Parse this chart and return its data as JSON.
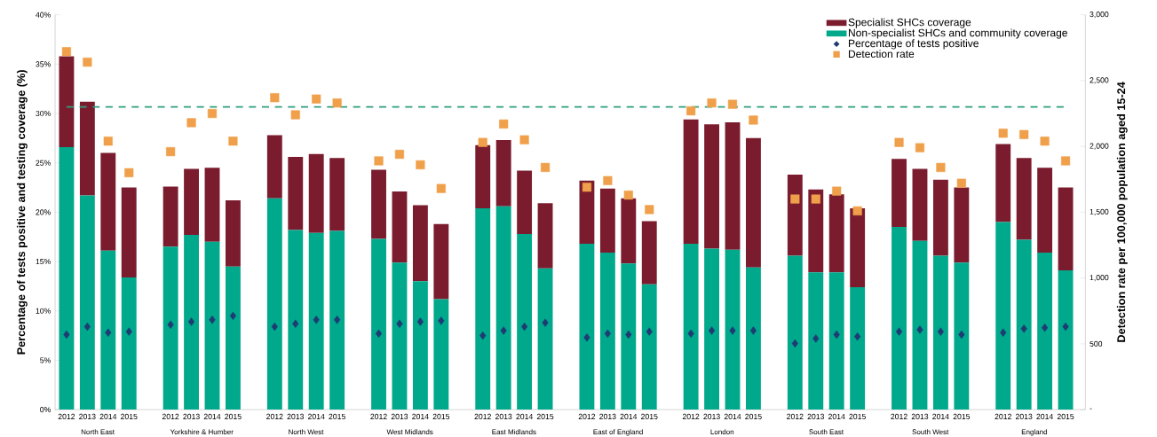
{
  "chart_data": {
    "type": "bar",
    "stacked": true,
    "categories": [
      "2012",
      "2013",
      "2014",
      "2015",
      null,
      "2012",
      "2013",
      "2014",
      "2015",
      null,
      "2012",
      "2013",
      "2014",
      "2015",
      null,
      "2012",
      "2013",
      "2014",
      "2015",
      null,
      "2012",
      "2013",
      "2014",
      "2015",
      null,
      "2012",
      "2013",
      "2014",
      "2015",
      null,
      "2012",
      "2013",
      "2014",
      "2015",
      null,
      "2012",
      "2013",
      "2014",
      "2015",
      null,
      "2012",
      "2013",
      "2014",
      "2015",
      null,
      "2012",
      "2013",
      "2014",
      "2015"
    ],
    "series": [
      {
        "name": "Non-specialist SHCs and community coverage",
        "color": "#00a88c",
        "values": [
          26.6,
          21.7,
          16.1,
          13.4,
          null,
          16.5,
          17.7,
          17.0,
          14.5,
          null,
          21.4,
          18.2,
          17.9,
          18.1,
          null,
          17.3,
          14.9,
          13.0,
          11.2,
          null,
          20.4,
          20.6,
          17.8,
          14.3,
          null,
          16.8,
          15.9,
          14.8,
          12.7,
          null,
          16.8,
          16.3,
          16.2,
          14.4,
          null,
          15.6,
          13.9,
          13.9,
          12.4,
          null,
          18.5,
          17.1,
          15.6,
          14.9,
          null,
          19.0,
          17.2,
          15.9,
          14.1
        ]
      },
      {
        "name": "Specialist SHCs coverage",
        "color": "#7b1c2e",
        "values": [
          9.2,
          9.5,
          9.9,
          9.1,
          null,
          6.1,
          6.7,
          7.5,
          6.7,
          null,
          6.4,
          7.4,
          8.0,
          7.4,
          null,
          7.0,
          7.2,
          7.7,
          7.6,
          null,
          6.4,
          6.7,
          6.4,
          6.6,
          null,
          6.4,
          6.5,
          6.6,
          6.4,
          null,
          12.6,
          12.6,
          12.9,
          13.1,
          null,
          8.2,
          8.4,
          7.9,
          8.0,
          null,
          6.9,
          7.3,
          7.7,
          7.6,
          null,
          7.9,
          8.3,
          8.6,
          8.4
        ]
      },
      {
        "name": "Percentage of tests positive",
        "type": "scatter",
        "marker": "diamond",
        "color": "#1f3b73",
        "values": [
          7.6,
          8.4,
          7.8,
          7.9,
          null,
          8.6,
          8.9,
          9.1,
          9.5,
          null,
          8.4,
          8.7,
          9.1,
          9.1,
          null,
          7.7,
          8.7,
          8.9,
          9.0,
          null,
          7.5,
          8.0,
          8.4,
          8.8,
          null,
          7.3,
          7.7,
          7.6,
          7.9,
          null,
          7.7,
          8.0,
          8.0,
          8.0,
          null,
          6.7,
          7.2,
          7.6,
          7.4,
          null,
          7.9,
          8.1,
          7.9,
          7.6,
          null,
          7.8,
          8.2,
          8.3,
          8.4
        ]
      },
      {
        "name": "Detection rate",
        "type": "scatter",
        "marker": "square",
        "axis": "y2",
        "color": "#f0a04b",
        "values": [
          2720,
          2640,
          2040,
          1800,
          null,
          1960,
          2180,
          2250,
          2040,
          null,
          2370,
          2240,
          2360,
          2330,
          null,
          1890,
          1940,
          1860,
          1680,
          null,
          2030,
          2170,
          2050,
          1840,
          null,
          1690,
          1740,
          1630,
          1520,
          null,
          2270,
          2330,
          2320,
          2200,
          null,
          1600,
          1600,
          1660,
          1510,
          null,
          2030,
          1990,
          1840,
          1720,
          null,
          2100,
          2090,
          2040,
          1890
        ]
      }
    ],
    "ylabel": "Percentage of tests positive and testing coverage (%)",
    "y2label": "Detection rate per 100,000 population aged 15-24",
    "ylim": [
      0,
      40
    ],
    "yticks": [
      {
        "value": 0,
        "label": "0%"
      },
      {
        "value": 5,
        "label": "5%"
      },
      {
        "value": 10,
        "label": "10%"
      },
      {
        "value": 15,
        "label": "15%"
      },
      {
        "value": 20,
        "label": "20%"
      },
      {
        "value": 25,
        "label": "25%"
      },
      {
        "value": 30,
        "label": "30%"
      },
      {
        "value": 35,
        "label": "35%"
      },
      {
        "value": 40,
        "label": "40%"
      }
    ],
    "y2lim": [
      0,
      3000
    ],
    "y2ticks": [
      {
        "value": 0,
        "label": "-"
      },
      500,
      {
        "value": 1000,
        "label": "1,000"
      },
      {
        "value": 1500,
        "label": "1,500"
      },
      {
        "value": 2000,
        "label": "2,000"
      },
      {
        "value": 2500,
        "label": "2,500"
      },
      {
        "value": 3000,
        "label": "3,000"
      }
    ],
    "ref_lines": [
      {
        "axis": "y2",
        "value": 2300,
        "color": "#2e9e7e",
        "line_style": "dashed"
      }
    ],
    "annotations": [
      "North East",
      "Yorkshire & Humber",
      "North West",
      "West Midlands",
      "East Midlands",
      "East of England",
      "London",
      "South East",
      "South West",
      "England"
    ],
    "legend": "top right"
  }
}
